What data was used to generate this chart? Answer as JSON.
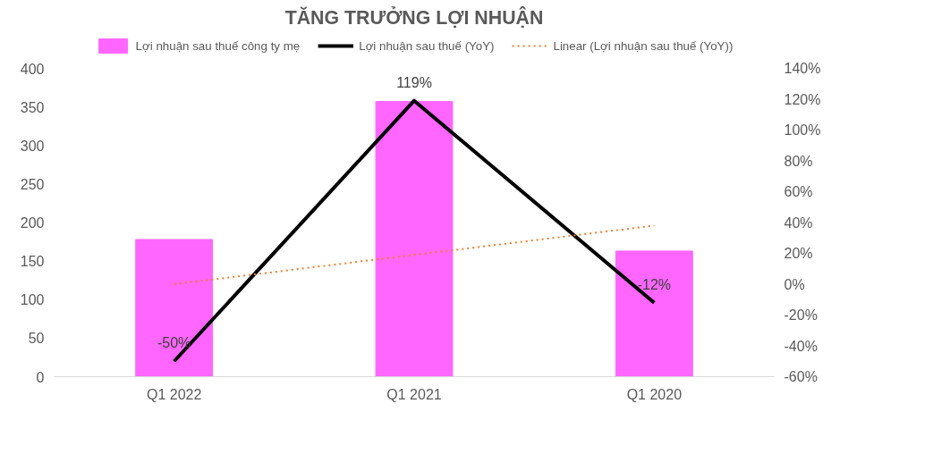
{
  "chart_data": {
    "type": "bar",
    "title": "TĂNG TRƯỞNG LỢI NHUẬN",
    "categories": [
      "Q1 2022",
      "Q1 2021",
      "Q1 2020"
    ],
    "series": [
      {
        "name": "Lợi nhuận sau thuế công ty mẹ",
        "color": "#ff66ff",
        "values": [
          178,
          357,
          163
        ]
      },
      {
        "name": "Lợi nhuận sau thuế (YoY)",
        "type": "line",
        "axis": "y2",
        "color": "#000000",
        "values": [
          -50,
          119,
          -12
        ],
        "value_labels": [
          "-50%",
          "119%",
          "-12%"
        ]
      },
      {
        "name": "Linear (Lợi nhuận sau thuế (YoY))",
        "type": "line",
        "axis": "y2",
        "color": "#ed7d31",
        "line_style": "dotted",
        "values": [
          0,
          19,
          38
        ]
      }
    ],
    "ylim": [
      0,
      400
    ],
    "yticks": [
      0,
      50,
      100,
      150,
      200,
      250,
      300,
      350,
      400
    ],
    "y2lim": [
      -60,
      140
    ],
    "y2ticks": [
      {
        "value": -60,
        "label": "-60%"
      },
      {
        "value": -40,
        "label": "-40%"
      },
      {
        "value": -20,
        "label": "-20%"
      },
      {
        "value": 0,
        "label": "0%"
      },
      {
        "value": 20,
        "label": "20%"
      },
      {
        "value": 40,
        "label": "40%"
      },
      {
        "value": 60,
        "label": "60%"
      },
      {
        "value": 80,
        "label": "80%"
      },
      {
        "value": 100,
        "label": "100%"
      },
      {
        "value": 120,
        "label": "120%"
      },
      {
        "value": 140,
        "label": "140%"
      }
    ],
    "legend": "top",
    "grid": false
  }
}
